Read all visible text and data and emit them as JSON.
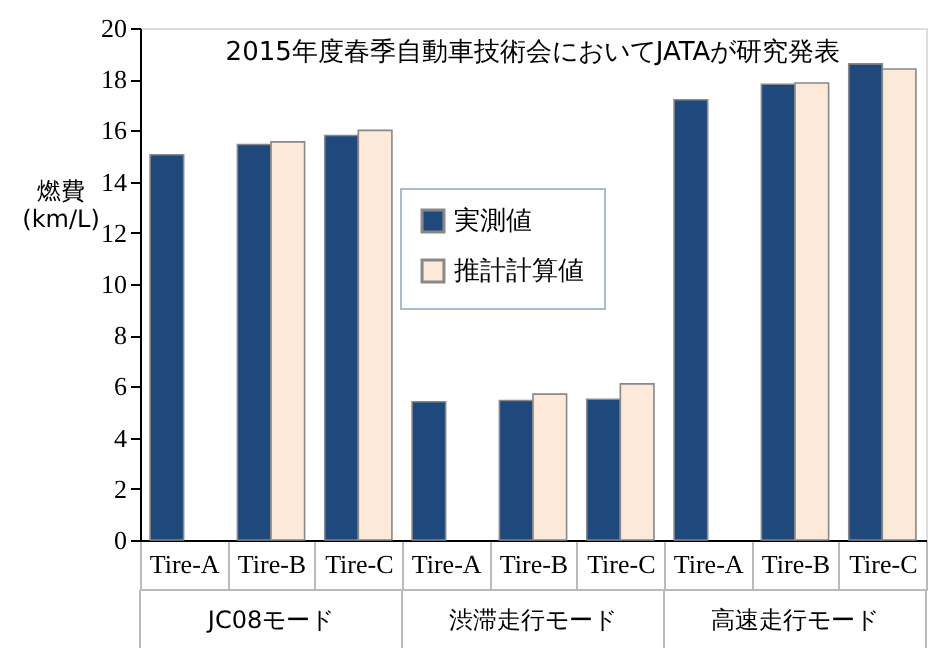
{
  "chart_data": {
    "type": "bar",
    "title": "2015年度春季自動車技術会においてJATAが研究発表",
    "ylabel": "燃費 (km/L)",
    "categories": [
      "Tire-A",
      "Tire-B",
      "Tire-C",
      "Tire-A",
      "Tire-B",
      "Tire-C",
      "Tire-A",
      "Tire-B",
      "Tire-C"
    ],
    "annotations": [
      "JC08モード",
      "渋滞走行モード",
      "高速走行モード"
    ],
    "series": [
      {
        "name": "実測値",
        "color": "#1f497d",
        "values": [
          15.05,
          15.45,
          15.8,
          5.4,
          5.45,
          5.5,
          17.2,
          17.8,
          18.6
        ]
      },
      {
        "name": "推計計算値",
        "color": "#fde9d9",
        "values": [
          null,
          15.55,
          16.0,
          null,
          5.7,
          6.1,
          null,
          17.85,
          18.4
        ]
      }
    ],
    "ylim": [
      0,
      20
    ],
    "yticks": [
      0,
      2,
      4,
      6,
      8,
      10,
      12,
      14,
      16,
      18,
      20
    ],
    "grid": false,
    "legend": "center"
  }
}
